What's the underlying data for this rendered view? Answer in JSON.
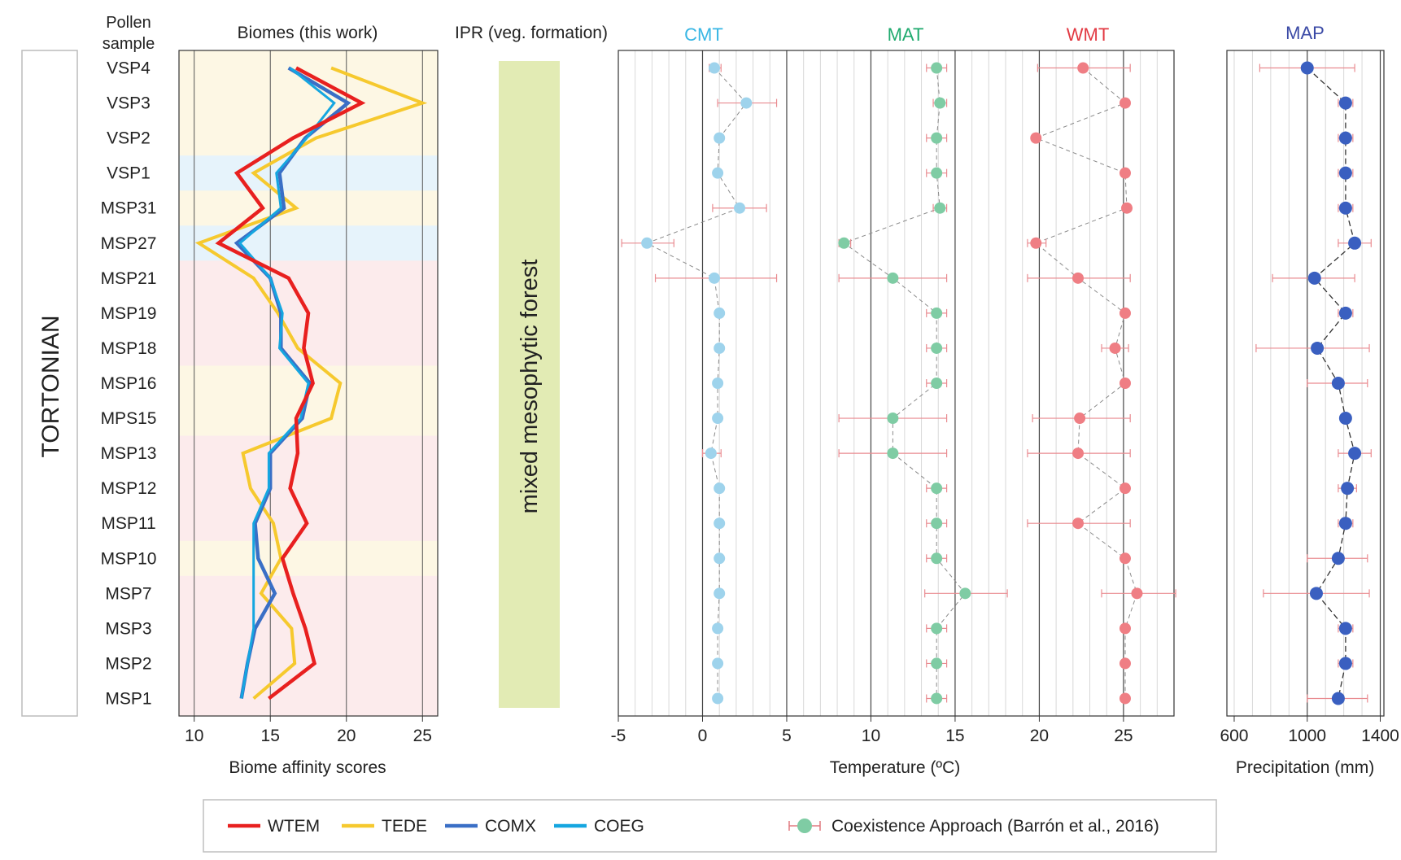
{
  "chart_data": {
    "type": "line",
    "samples": [
      "VSP4",
      "VSP3",
      "VSP2",
      "VSP1",
      "MSP31",
      "MSP27",
      "MSP21",
      "MSP19",
      "MSP18",
      "MSP16",
      "MPS15",
      "MSP13",
      "MSP12",
      "MSP11",
      "MSP10",
      "MSP7",
      "MSP3",
      "MSP2",
      "MSP1"
    ],
    "stage_label": "TORTONIAN",
    "pollen_header": [
      "Pollen",
      "sample"
    ],
    "bands": [
      "yellow",
      "yellow",
      "yellow",
      "blue",
      "yellow",
      "blue",
      "pink",
      "pink",
      "pink",
      "yellow",
      "yellow",
      "pink",
      "pink",
      "pink",
      "yellow",
      "pink",
      "pink",
      "pink",
      "pink"
    ],
    "band_colors": {
      "yellow": "#fdf7e4",
      "blue": "#e6f3fb",
      "pink": "#fcebec"
    },
    "biomes": {
      "title": "Biomes (this work)",
      "xlabel": "Biome affinity scores",
      "xlim": [
        9,
        26
      ],
      "ticks": [
        10,
        15,
        20,
        25
      ],
      "series": [
        {
          "name": "WTEM",
          "color": "#e8201f",
          "values": [
            16.7,
            21.0,
            16.5,
            12.8,
            14.5,
            11.6,
            16.2,
            17.5,
            17.2,
            17.8,
            16.7,
            16.8,
            16.3,
            17.4,
            15.8,
            16.5,
            17.3,
            17.9,
            14.9
          ]
        },
        {
          "name": "TEDE",
          "color": "#f6c92e",
          "values": [
            19.0,
            25.0,
            18.0,
            13.9,
            16.7,
            10.3,
            13.9,
            15.5,
            16.8,
            19.6,
            19.0,
            13.2,
            13.7,
            15.2,
            15.7,
            14.4,
            16.4,
            16.6,
            13.9
          ]
        },
        {
          "name": "COMX",
          "color": "#3a6fc6",
          "values": [
            16.2,
            20.1,
            17.3,
            15.6,
            15.9,
            12.8,
            15.0,
            15.7,
            15.7,
            17.6,
            17.1,
            15.0,
            15.0,
            14.0,
            14.2,
            15.3,
            14.0,
            13.5,
            13.1
          ]
        },
        {
          "name": "COEG",
          "color": "#15a6e0",
          "values": [
            16.3,
            19.2,
            17.4,
            15.4,
            15.7,
            13.0,
            15.0,
            15.8,
            15.6,
            17.5,
            17.0,
            14.9,
            14.9,
            13.9,
            13.9,
            13.9,
            13.9,
            13.5,
            13.1
          ]
        }
      ]
    },
    "ipr": {
      "title": "IPR (veg. formation)",
      "label": "mixed mesophytic forest",
      "color": "#e2ebb4"
    },
    "temperature": {
      "xlabel": "Temperature (ºC)",
      "xlim": [
        -5,
        28
      ],
      "ticks": [
        -5,
        0,
        5,
        10,
        15,
        20,
        25
      ],
      "series": [
        {
          "name": "CMT",
          "color": "#38b6e4",
          "marker_color": "#9ed3ec",
          "values": [
            0.7,
            2.6,
            1.0,
            0.9,
            2.2,
            -3.3,
            0.7,
            1.0,
            1.0,
            0.9,
            0.9,
            0.5,
            1.0,
            1.0,
            1.0,
            1.0,
            0.9,
            0.9,
            0.9
          ],
          "lo": [
            0.4,
            0.9,
            0.8,
            0.7,
            0.6,
            -4.8,
            -2.8,
            0.8,
            0.8,
            0.7,
            0.7,
            0.0,
            0.8,
            0.8,
            0.8,
            0.8,
            0.7,
            0.7,
            0.7
          ],
          "hi": [
            1.1,
            4.4,
            1.2,
            1.1,
            3.8,
            -1.7,
            4.4,
            1.2,
            1.2,
            1.1,
            1.1,
            1.1,
            1.2,
            1.2,
            1.2,
            1.2,
            1.1,
            1.1,
            1.1
          ]
        },
        {
          "name": "MAT",
          "color": "#1faa6e",
          "marker_color": "#7fcca4",
          "values": [
            13.9,
            14.1,
            13.9,
            13.9,
            14.1,
            8.4,
            11.3,
            13.9,
            13.9,
            13.9,
            11.3,
            11.3,
            13.9,
            13.9,
            13.9,
            15.6,
            13.9,
            13.9,
            13.9
          ],
          "lo": [
            13.3,
            13.7,
            13.3,
            13.3,
            13.7,
            8.1,
            8.1,
            13.3,
            13.3,
            13.3,
            8.1,
            8.1,
            13.3,
            13.3,
            13.3,
            13.2,
            13.3,
            13.3,
            13.3
          ],
          "hi": [
            14.5,
            14.5,
            14.5,
            14.5,
            14.5,
            8.8,
            14.5,
            14.5,
            14.5,
            14.5,
            14.5,
            14.5,
            14.5,
            14.5,
            14.5,
            18.1,
            14.5,
            14.5,
            14.5
          ]
        },
        {
          "name": "WMT",
          "color": "#e23a43",
          "marker_color": "#ef7e84",
          "values": [
            22.6,
            25.1,
            19.8,
            25.1,
            25.2,
            19.8,
            22.3,
            25.1,
            24.5,
            25.1,
            22.4,
            22.3,
            25.1,
            22.3,
            25.1,
            25.8,
            25.1,
            25.1,
            25.1
          ],
          "lo": [
            19.9,
            24.9,
            19.6,
            24.9,
            25.0,
            19.3,
            19.3,
            24.9,
            23.7,
            24.9,
            19.6,
            19.3,
            24.9,
            19.3,
            24.9,
            23.7,
            24.9,
            24.9,
            24.9
          ],
          "hi": [
            25.4,
            25.3,
            20.0,
            25.3,
            25.4,
            20.4,
            25.4,
            25.3,
            25.3,
            25.3,
            25.4,
            25.4,
            25.3,
            25.4,
            25.3,
            28.1,
            25.3,
            25.3,
            25.3
          ]
        }
      ]
    },
    "precipitation": {
      "name": "MAP",
      "color": "#3a5fc0",
      "title_color": "#3b4aa6",
      "xlabel": "Precipitation (mm)",
      "xlim": [
        560,
        1420
      ],
      "ticks": [
        600,
        1000,
        1400
      ],
      "values": [
        1000,
        1210,
        1210,
        1210,
        1210,
        1260,
        1040,
        1210,
        1055,
        1170,
        1210,
        1260,
        1220,
        1210,
        1170,
        1050,
        1210,
        1210,
        1170
      ],
      "lo": [
        740,
        1170,
        1170,
        1170,
        1170,
        1170,
        810,
        1170,
        720,
        1000,
        1210,
        1170,
        1170,
        1170,
        1000,
        760,
        1170,
        1170,
        1000
      ],
      "hi": [
        1260,
        1250,
        1250,
        1250,
        1250,
        1350,
        1260,
        1250,
        1340,
        1330,
        1210,
        1350,
        1270,
        1250,
        1330,
        1340,
        1250,
        1250,
        1330
      ]
    }
  },
  "legend": {
    "items": [
      {
        "label": "WTEM",
        "color": "#e8201f"
      },
      {
        "label": "TEDE",
        "color": "#f6c92e"
      },
      {
        "label": "COMX",
        "color": "#3a6fc6"
      },
      {
        "label": "COEG",
        "color": "#15a6e0"
      }
    ],
    "ca_label": "Coexistence Approach (Barrón et al., 2016)",
    "ca_color": "#7fcca4",
    "ca_bar_color": "#e07a80"
  }
}
